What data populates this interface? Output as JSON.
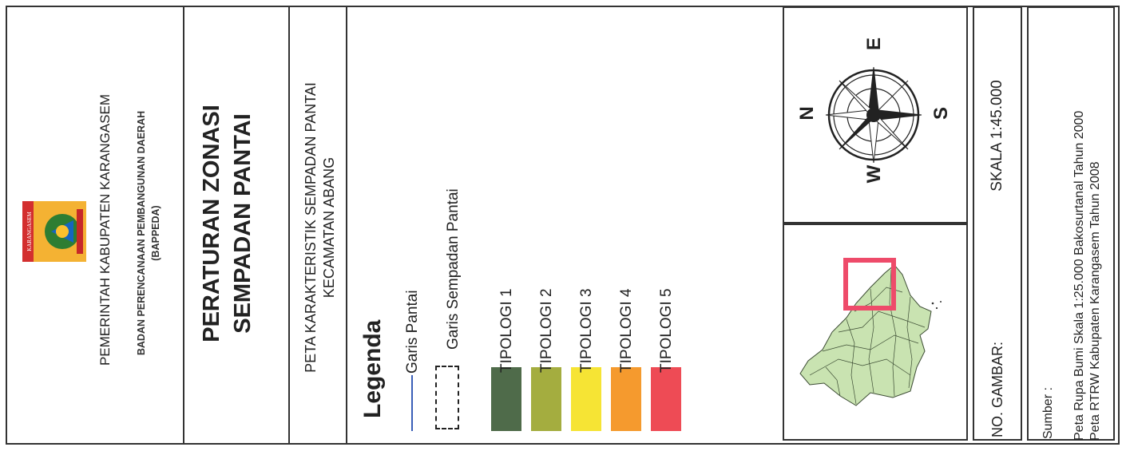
{
  "header": {
    "gov_line1": "PEMERINTAH KABUPATEN KARANGASEM",
    "gov_line2": "BADAN PERENCANAAN PEMBANGUNAN DAERAH",
    "gov_line3": "(BAPPEDA)",
    "logo_text": "KARANGASEM"
  },
  "title": {
    "line1": "PERATURAN ZONASI",
    "line2": "SEMPADAN PANTAI"
  },
  "subtitle": {
    "line1": "PETA KARAKTERISTIK SEMPADAN PANTAI",
    "line2": "KECAMATAN ABANG"
  },
  "legend": {
    "heading": "Legenda",
    "items": [
      {
        "label": "Garis Pantai",
        "type": "line",
        "color": "#3a5fb8"
      },
      {
        "label": "Garis Sempadan Pantai",
        "type": "dashed-box",
        "color": "#222222"
      },
      {
        "label": "TIPOLOGI 1",
        "type": "fill",
        "color": "#4f6b4a"
      },
      {
        "label": "TIPOLOGI 2",
        "type": "fill",
        "color": "#a4ad3f"
      },
      {
        "label": "TIPOLOGI 3",
        "type": "fill",
        "color": "#f6e434"
      },
      {
        "label": "TIPOLOGI 4",
        "type": "fill",
        "color": "#f59a2e"
      },
      {
        "label": "TIPOLOGI 5",
        "type": "fill",
        "color": "#ee4b55"
      }
    ]
  },
  "compass": {
    "north": "N",
    "east": "E",
    "south": "S",
    "west": "W"
  },
  "inset_map": {
    "land_color": "#c9e3b1",
    "highlight_color": "#ee4b6a"
  },
  "scale": {
    "label": "SKALA 1:45.000"
  },
  "drawing_no": {
    "label": "NO. GAMBAR:"
  },
  "source": {
    "heading": "Sumber :",
    "line1": "Peta Rupa Bumi Skala 1:25.000 Bakosurtanal Tahun 2000",
    "line2": "Peta RTRW Kabupaten Karangasem Tahun 2008"
  }
}
